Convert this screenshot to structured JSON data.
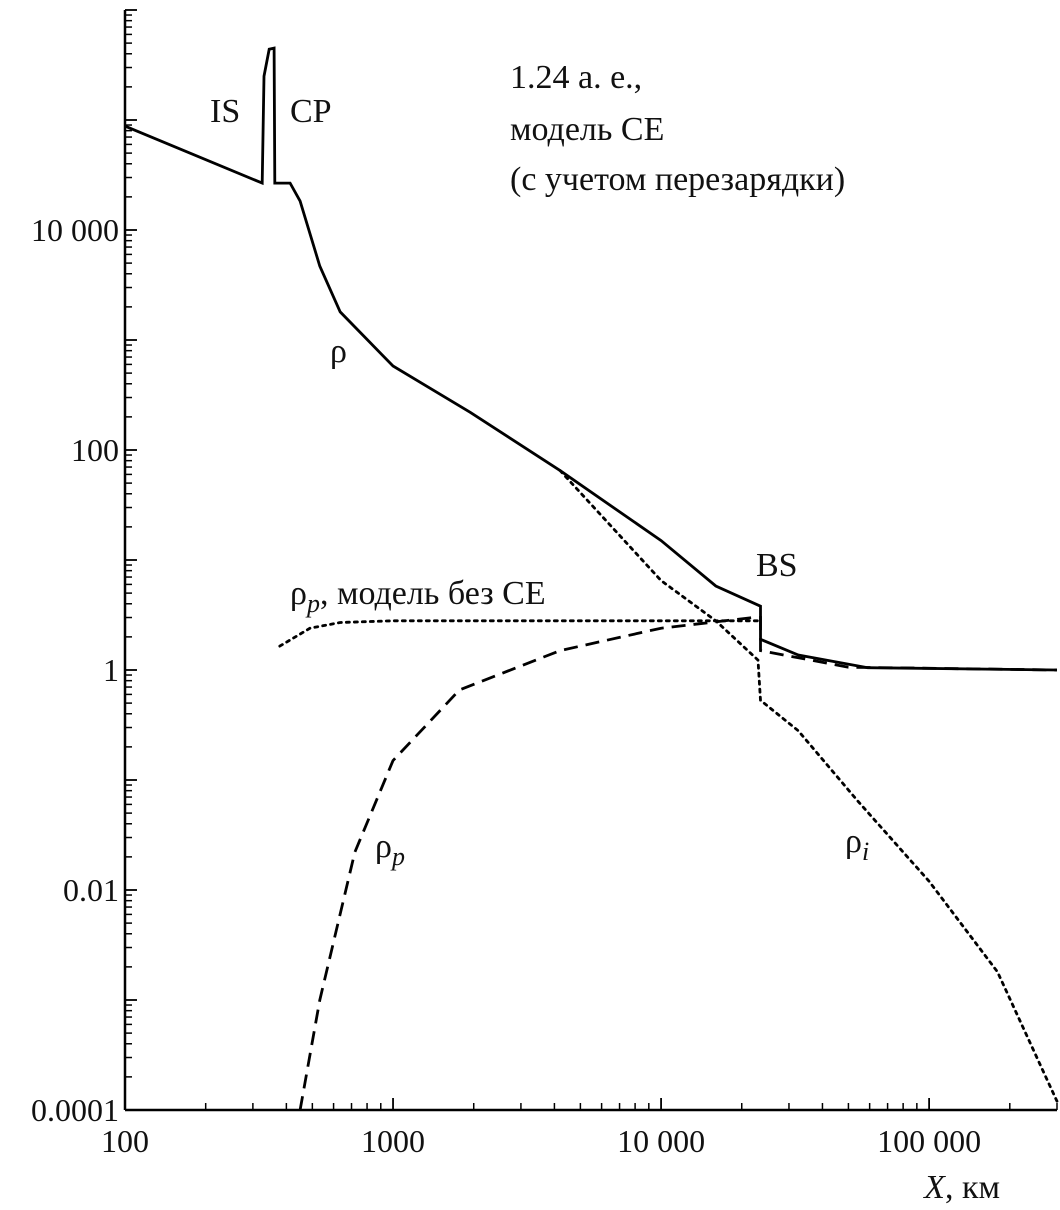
{
  "chart_data": {
    "type": "line",
    "annotations": [
      "1.24 а. е.,",
      "модель СЕ",
      "(с учетом перезарядки)",
      "IS",
      "CP",
      "BS"
    ],
    "xlabel": {
      "symbol": "X",
      "unit": ", км"
    },
    "xscale": "log",
    "yscale": "log",
    "xlim": [
      100,
      300000
    ],
    "ylim": [
      0.0001,
      1000000
    ],
    "xticks": [
      100,
      1000,
      {
        "value": 10000,
        "label": "10 000"
      },
      {
        "value": 100000,
        "label": "100 000"
      }
    ],
    "yticks": [
      0.0001,
      0.01,
      1,
      100,
      {
        "value": 10000,
        "label": "10 000"
      }
    ],
    "minor_ticks": true,
    "series": [
      {
        "name": "ρ",
        "color": "#000000",
        "style": "solid",
        "x": [
          100,
          325,
          330,
          345,
          360,
          362,
          413,
          450,
          533,
          635,
          1000,
          1940,
          4200,
          10000,
          16000,
          23500,
          23500,
          32500,
          59000,
          300000
        ],
        "y": [
          88000,
          26700,
          250000,
          440000,
          450000,
          26700,
          26700,
          18300,
          4700,
          1800,
          580,
          220,
          65,
          15,
          5.8,
          3.8,
          1.9,
          1.37,
          1.05,
          1
        ]
      },
      {
        "name": "ρ",
        "subscript": "p",
        "color": "#000000",
        "style": "dashed",
        "x": [
          450,
          533,
          720,
          1000,
          1770,
          4200,
          10000,
          22000,
          23500,
          23500,
          50000,
          300000
        ],
        "y": [
          0.0001,
          0.001,
          0.022,
          0.15,
          0.66,
          1.5,
          2.4,
          3.0,
          3.0,
          1.5,
          1.06,
          1
        ]
      },
      {
        "name": "ρ",
        "subscript": "i",
        "color": "#000000",
        "style": "dotted",
        "x": [
          4200,
          10000,
          16000,
          23000,
          23500,
          32500,
          54000,
          100000,
          180000,
          300000
        ],
        "y": [
          65,
          6.5,
          2.8,
          1.23,
          0.53,
          0.28,
          0.065,
          0.012,
          0.0018,
          0.00012
        ]
      },
      {
        "name": "ρ",
        "subscript": "p",
        "note": ", модель без СЕ",
        "color": "#000000",
        "style": "dotted",
        "x": [
          378,
          490,
          635,
          1000,
          5000,
          23000
        ],
        "y": [
          1.65,
          2.4,
          2.7,
          2.8,
          2.8,
          2.8
        ]
      }
    ]
  }
}
